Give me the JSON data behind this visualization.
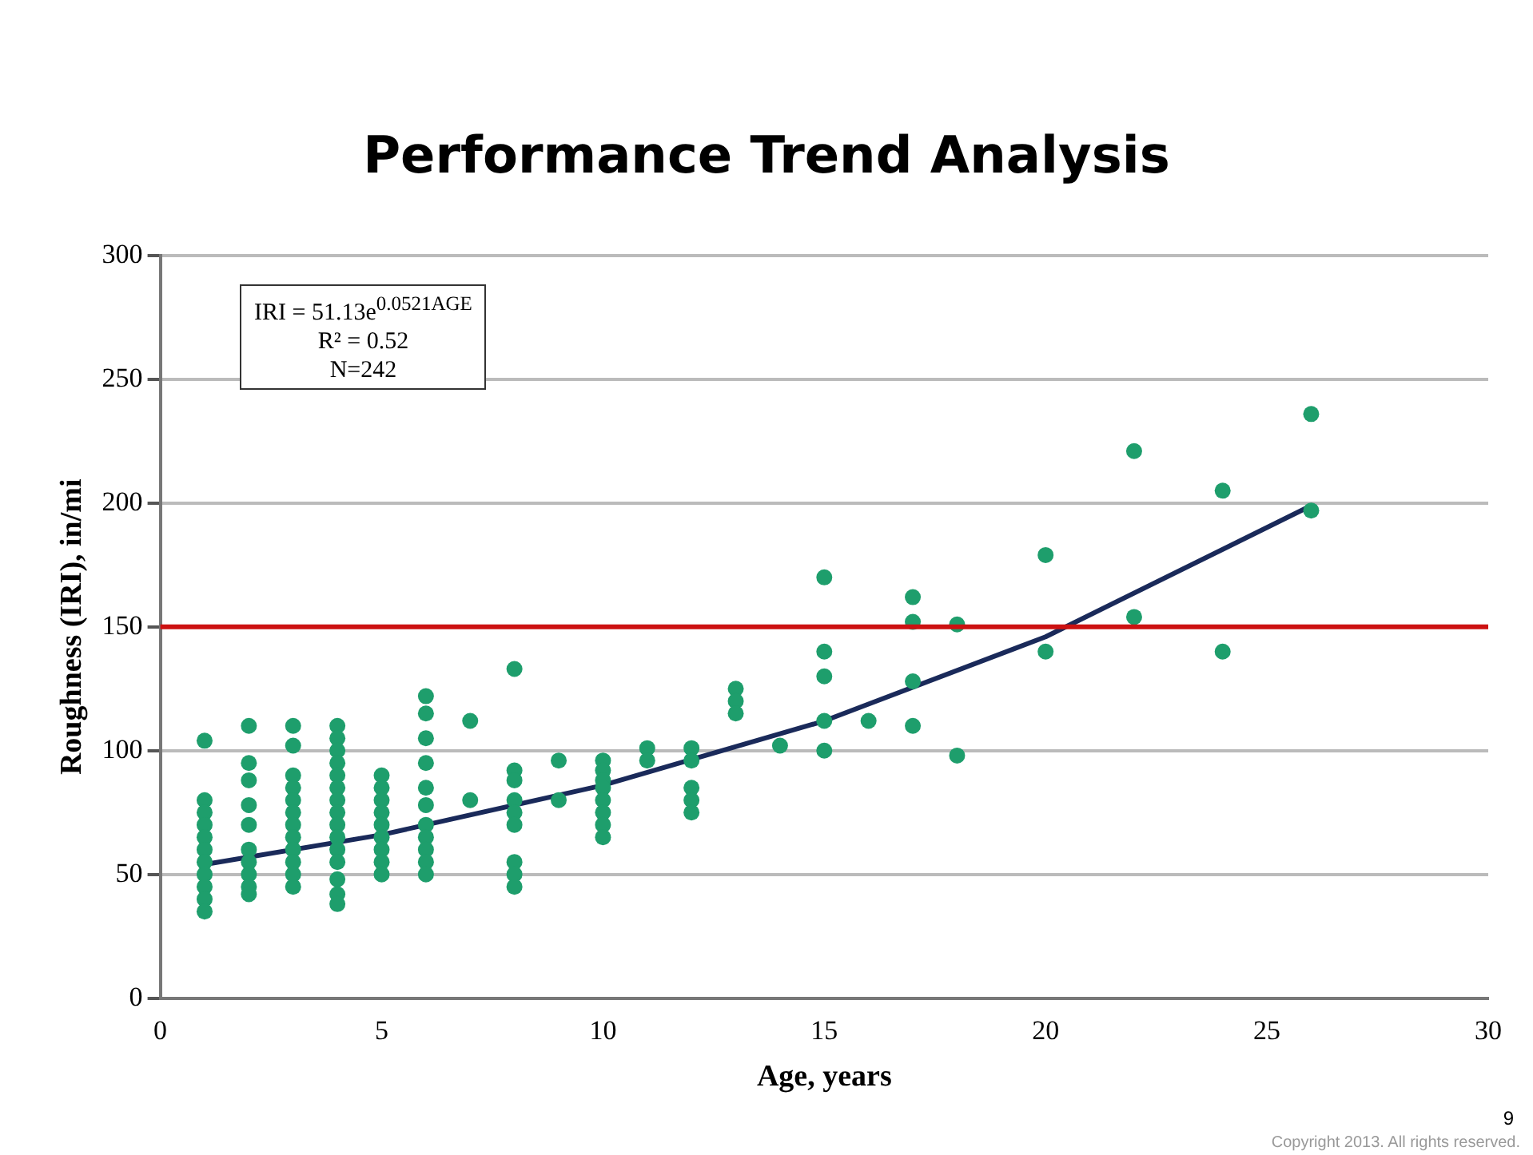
{
  "chart_data": {
    "type": "scatter",
    "title": "Performance Trend Analysis",
    "xlabel": "Age, years",
    "ylabel": "Roughness (IRI), in/mi",
    "xlim": [
      0,
      30
    ],
    "xticks": [
      0,
      5,
      10,
      15,
      20,
      25,
      30
    ],
    "ylim": [
      0,
      300
    ],
    "yticks": [
      0,
      50,
      100,
      150,
      200,
      250,
      300
    ],
    "grid": "y",
    "legend": false,
    "marker": "circle",
    "series": [
      {
        "color": "#1e9e6c",
        "x": [
          1,
          1,
          1,
          1,
          1,
          1,
          1,
          1,
          1,
          1,
          1,
          2,
          2,
          2,
          2,
          2,
          2,
          2,
          2,
          2,
          2,
          3,
          3,
          3,
          3,
          3,
          3,
          3,
          3,
          3,
          3,
          3,
          3,
          4,
          4,
          4,
          4,
          4,
          4,
          4,
          4,
          4,
          4,
          4,
          4,
          4,
          4,
          4,
          5,
          5,
          5,
          5,
          5,
          5,
          5,
          5,
          5,
          6,
          6,
          6,
          6,
          6,
          6,
          6,
          6,
          6,
          6,
          6,
          7,
          7,
          8,
          8,
          8,
          8,
          8,
          8,
          8,
          8,
          8,
          9,
          9,
          10,
          10,
          10,
          10,
          10,
          10,
          10,
          10,
          11,
          11,
          12,
          12,
          12,
          12,
          12,
          13,
          13,
          13,
          14,
          15,
          15,
          15,
          15,
          15,
          16,
          17,
          17,
          17,
          17,
          18,
          18,
          20,
          20,
          22,
          22,
          24,
          24,
          26,
          26
        ],
        "values": [
          104,
          80,
          75,
          70,
          65,
          60,
          55,
          50,
          45,
          40,
          35,
          110,
          95,
          88,
          78,
          70,
          60,
          55,
          50,
          45,
          42,
          110,
          102,
          90,
          85,
          80,
          75,
          70,
          65,
          60,
          55,
          50,
          45,
          110,
          105,
          100,
          95,
          90,
          85,
          80,
          75,
          70,
          65,
          60,
          55,
          48,
          42,
          38,
          90,
          85,
          80,
          75,
          70,
          65,
          60,
          55,
          50,
          122,
          115,
          105,
          95,
          85,
          78,
          70,
          65,
          60,
          55,
          50,
          112,
          80,
          133,
          92,
          88,
          80,
          75,
          70,
          55,
          50,
          45,
          96,
          80,
          96,
          92,
          88,
          85,
          80,
          75,
          70,
          65,
          101,
          96,
          101,
          96,
          85,
          80,
          75,
          125,
          120,
          115,
          102,
          170,
          140,
          130,
          112,
          100,
          112,
          162,
          152,
          128,
          110,
          151,
          98,
          179,
          140,
          221,
          154,
          205,
          140,
          236,
          197
        ]
      },
      {
        "type": "line",
        "color": "#1a2a5a",
        "marker": "none",
        "x": [
          1,
          5,
          10,
          15,
          20,
          26
        ],
        "values": [
          54,
          66,
          86,
          112,
          146,
          199
        ]
      }
    ],
    "ref_lines": [
      {
        "axis": "y",
        "value": 150,
        "color": "#cc1111"
      }
    ],
    "annotations": [
      "IRI = 51.13e$^{0.0521AGE}$",
      "R² = 0.52",
      "N=242",
      "Copyright 2013. All rights reserved.",
      "9"
    ]
  }
}
